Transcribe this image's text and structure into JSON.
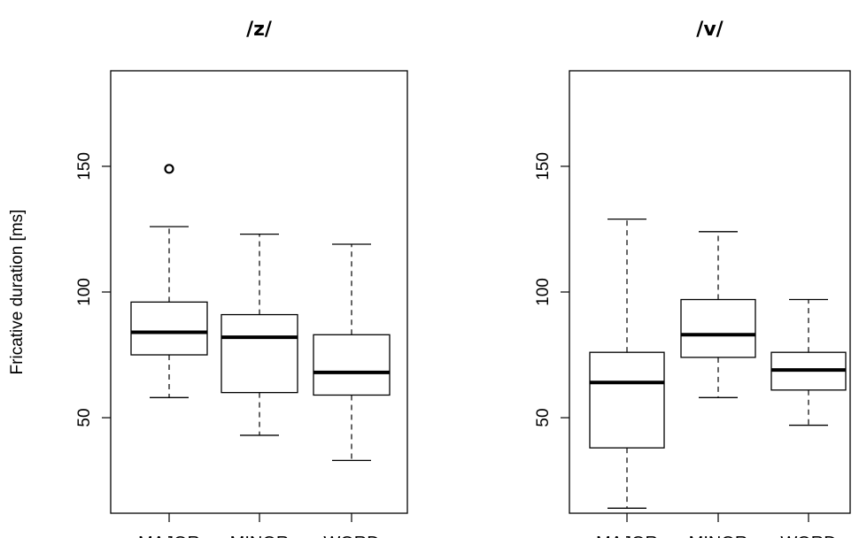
{
  "chart_data": [
    {
      "type": "boxplot",
      "title": "/z/",
      "ylabel": "Fricative duration [ms]",
      "xlabel": "",
      "ylim": [
        12,
        188
      ],
      "yticks": [
        50,
        100,
        150
      ],
      "categories": [
        "MAJOR",
        "MINOR",
        "WORD"
      ],
      "boxes": [
        {
          "category": "MAJOR",
          "whisker_low": 58,
          "q1": 75,
          "median": 84,
          "q3": 96,
          "whisker_high": 126,
          "outliers": [
            149
          ]
        },
        {
          "category": "MINOR",
          "whisker_low": 43,
          "q1": 60,
          "median": 82,
          "q3": 91,
          "whisker_high": 123,
          "outliers": []
        },
        {
          "category": "WORD",
          "whisker_low": 33,
          "q1": 59,
          "median": 68,
          "q3": 83,
          "whisker_high": 119,
          "outliers": []
        }
      ]
    },
    {
      "type": "boxplot",
      "title": "/v/",
      "ylabel": "",
      "xlabel": "",
      "ylim": [
        12,
        188
      ],
      "yticks": [
        50,
        100,
        150
      ],
      "categories": [
        "MAJOR",
        "MINOR",
        "WORD"
      ],
      "boxes": [
        {
          "category": "MAJOR",
          "whisker_low": 14,
          "q1": 38,
          "median": 64,
          "q3": 76,
          "whisker_high": 129,
          "outliers": []
        },
        {
          "category": "MINOR",
          "whisker_low": 58,
          "q1": 74,
          "median": 83,
          "q3": 97,
          "whisker_high": 124,
          "outliers": []
        },
        {
          "category": "WORD",
          "whisker_low": 47,
          "q1": 61,
          "median": 69,
          "q3": 76,
          "whisker_high": 97,
          "outliers": []
        }
      ]
    }
  ]
}
